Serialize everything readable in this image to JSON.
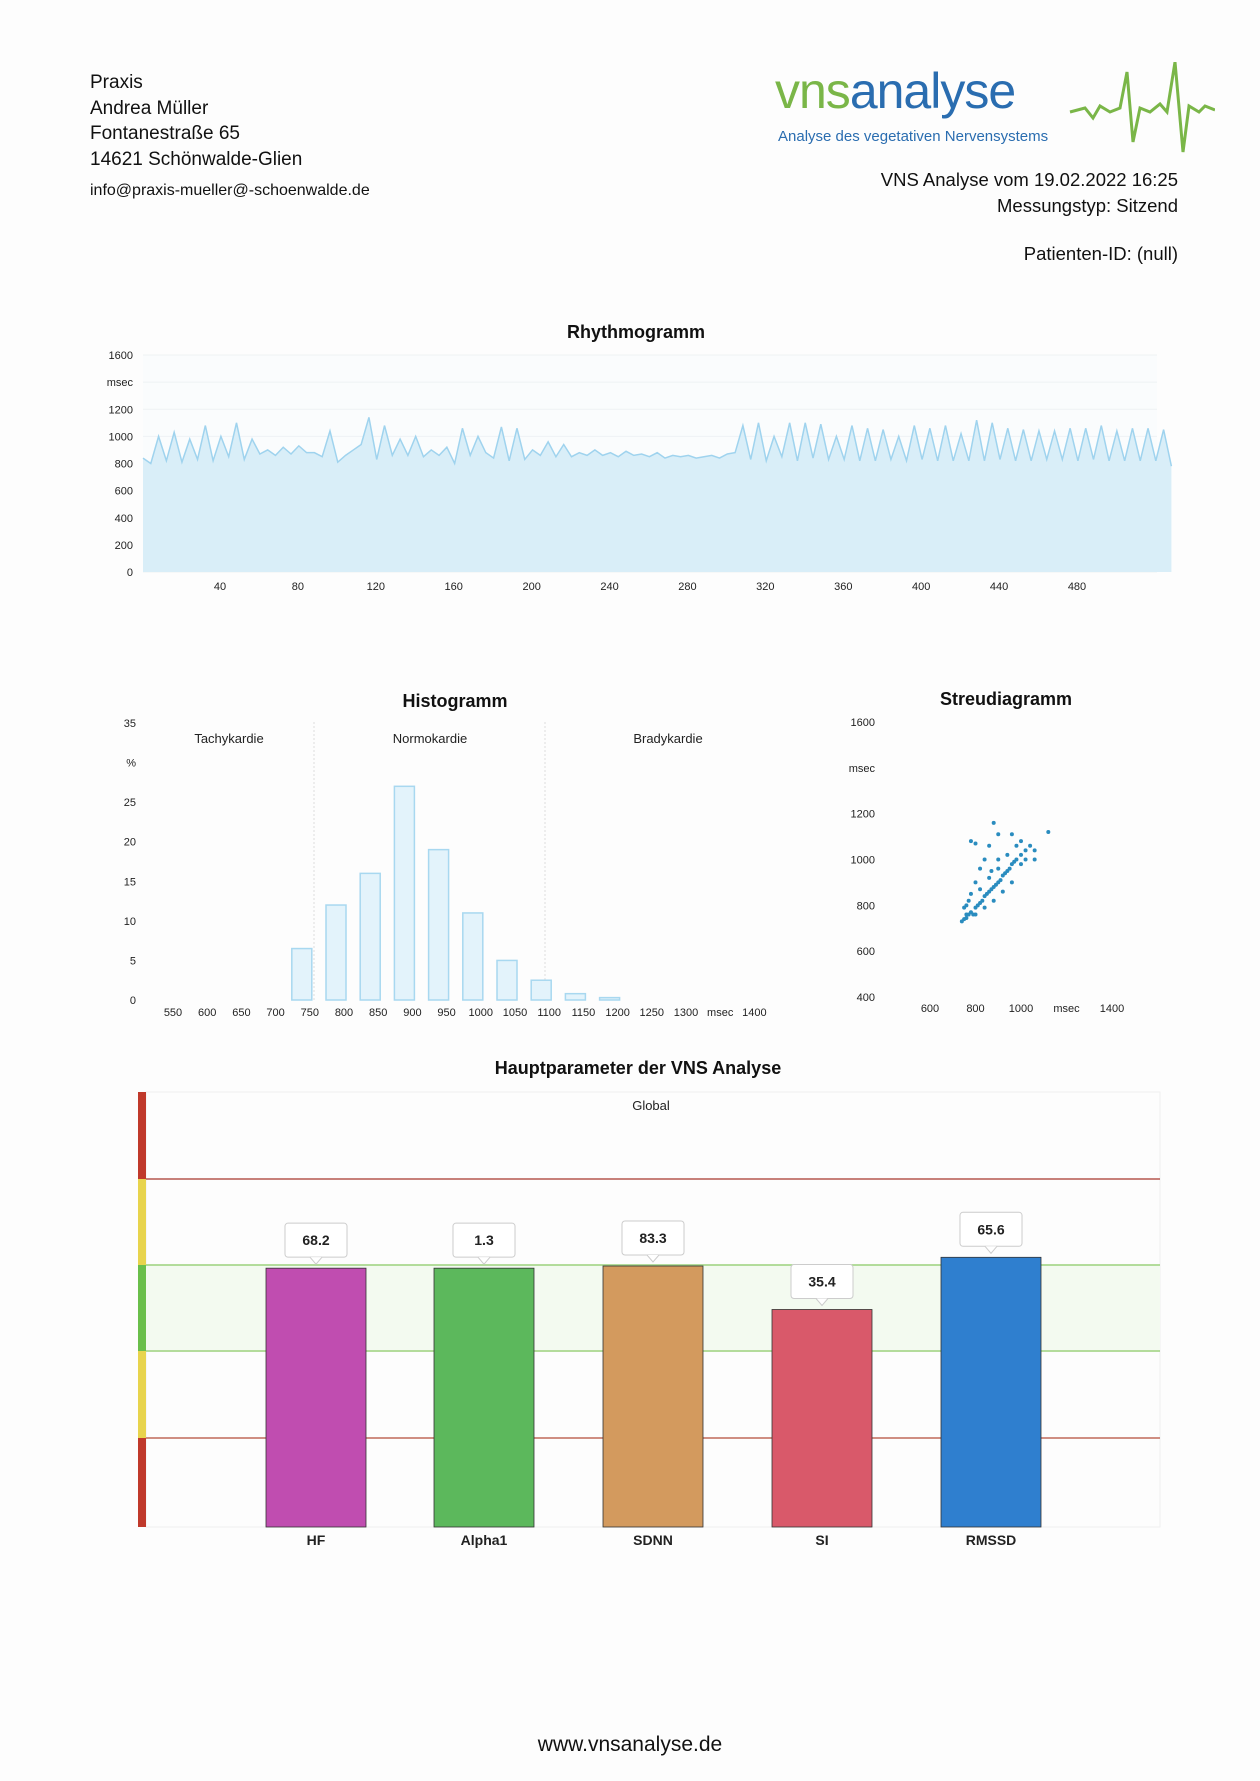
{
  "header": {
    "address": [
      "Praxis",
      "Andrea Müller",
      "Fontanestraße 65",
      "14621 Schönwalde-Glien"
    ],
    "email": "info@praxis-mueller@-schoenwalde.de",
    "logo": {
      "word_green": "vns",
      "word_blue": "analyse",
      "subtitle": "Analyse des vegetativen Nervensystems",
      "green": "#7ab648",
      "blue": "#2a6db0"
    },
    "analysis_line": "VNS Analyse vom 19.02.2022 16:25",
    "measurement_type": "Messungstyp: Sitzend",
    "patient_id": "Patienten-ID: (null)"
  },
  "footer": "www.vnsanalyse.de",
  "chart_data": [
    {
      "type": "area",
      "title": "Rhythmogramm",
      "ylabel": "msec",
      "ylim": [
        0,
        1600
      ],
      "yticks": [
        "0",
        "200",
        "400",
        "600",
        "800",
        "1000",
        "1200",
        "1600"
      ],
      "xticks": [
        "40",
        "80",
        "120",
        "160",
        "200",
        "240",
        "280",
        "320",
        "360",
        "400",
        "440",
        "480"
      ],
      "xlim": [
        0,
        520
      ],
      "x_step": 4,
      "values": [
        840,
        800,
        1000,
        820,
        1030,
        810,
        980,
        830,
        1080,
        820,
        1000,
        850,
        1100,
        830,
        980,
        870,
        900,
        860,
        920,
        870,
        930,
        880,
        880,
        850,
        1040,
        810,
        860,
        900,
        940,
        1140,
        830,
        1080,
        860,
        980,
        860,
        1000,
        850,
        900,
        860,
        920,
        800,
        1060,
        860,
        1000,
        880,
        840,
        1070,
        820,
        1060,
        830,
        900,
        860,
        960,
        850,
        940,
        850,
        880,
        860,
        900,
        860,
        880,
        850,
        890,
        860,
        870,
        850,
        880,
        840,
        860,
        850,
        860,
        840,
        850,
        860,
        840,
        870,
        880,
        1080,
        830,
        1100,
        820,
        1000,
        850,
        1100,
        820,
        1100,
        840,
        1090,
        830,
        1000,
        830,
        1080,
        820,
        1060,
        820,
        1050,
        830,
        1000,
        820,
        1080,
        830,
        1060,
        820,
        1080,
        820,
        1020,
        820,
        1120,
        820,
        1100,
        830,
        1060,
        820,
        1050,
        820,
        1040,
        830,
        1040,
        830,
        1060,
        820,
        1060,
        830,
        1080,
        820,
        1040,
        820,
        1060,
        820,
        1060,
        820,
        1050,
        780
      ]
    },
    {
      "type": "bar",
      "title": "Histogramm",
      "ylabel": "%",
      "ylim": [
        0,
        35
      ],
      "yticks": [
        "0",
        "5",
        "10",
        "15",
        "20",
        "25",
        "35"
      ],
      "xticks": [
        "550",
        "600",
        "650",
        "700",
        "750",
        "800",
        "850",
        "900",
        "950",
        "1000",
        "1050",
        "1100",
        "1150",
        "1200",
        "1250",
        "1300",
        "msec",
        "1400"
      ],
      "zones": [
        "Tachykardie",
        "Normokardie",
        "Bradykardie"
      ],
      "categories": [
        750,
        800,
        850,
        900,
        950,
        1000,
        1050,
        1100,
        1150,
        1200
      ],
      "values": [
        6.5,
        12,
        16,
        27,
        19,
        11,
        5,
        2.5,
        0.8,
        0.3
      ]
    },
    {
      "type": "scatter",
      "title": "Streudiagramm",
      "ylabel": "msec",
      "xlim": [
        500,
        1500
      ],
      "ylim": [
        400,
        1600
      ],
      "xticks": [
        "600",
        "800",
        "1000",
        "msec",
        "1400"
      ],
      "yticks": [
        "400",
        "600",
        "800",
        "1000",
        "1200",
        "1600"
      ],
      "points": [
        [
          740,
          730
        ],
        [
          750,
          740
        ],
        [
          760,
          745
        ],
        [
          770,
          760
        ],
        [
          780,
          770
        ],
        [
          790,
          760
        ],
        [
          800,
          790
        ],
        [
          810,
          800
        ],
        [
          820,
          810
        ],
        [
          830,
          820
        ],
        [
          840,
          840
        ],
        [
          850,
          850
        ],
        [
          860,
          860
        ],
        [
          870,
          870
        ],
        [
          880,
          880
        ],
        [
          890,
          890
        ],
        [
          900,
          900
        ],
        [
          910,
          910
        ],
        [
          920,
          930
        ],
        [
          930,
          940
        ],
        [
          940,
          950
        ],
        [
          950,
          960
        ],
        [
          960,
          980
        ],
        [
          970,
          990
        ],
        [
          980,
          1000
        ],
        [
          1000,
          1020
        ],
        [
          1020,
          1040
        ],
        [
          1040,
          1060
        ],
        [
          760,
          800
        ],
        [
          780,
          850
        ],
        [
          800,
          900
        ],
        [
          820,
          960
        ],
        [
          840,
          1000
        ],
        [
          860,
          1060
        ],
        [
          780,
          1080
        ],
        [
          800,
          1070
        ],
        [
          900,
          1110
        ],
        [
          960,
          1110
        ],
        [
          1120,
          1120
        ],
        [
          880,
          1160
        ],
        [
          1060,
          1040
        ],
        [
          1000,
          980
        ],
        [
          960,
          900
        ],
        [
          920,
          860
        ],
        [
          880,
          820
        ],
        [
          840,
          790
        ],
        [
          800,
          760
        ],
        [
          760,
          760
        ],
        [
          750,
          790
        ],
        [
          770,
          820
        ],
        [
          820,
          870
        ],
        [
          860,
          920
        ],
        [
          900,
          960
        ],
        [
          940,
          1020
        ],
        [
          980,
          1060
        ],
        [
          1020,
          1000
        ],
        [
          1060,
          1000
        ],
        [
          1000,
          1080
        ],
        [
          900,
          1000
        ],
        [
          870,
          950
        ]
      ]
    },
    {
      "type": "bar",
      "title": "Hauptparameter der VNS Analyse",
      "subtitle": "Global",
      "categories": [
        "HF",
        "Alpha1",
        "SDNN",
        "SI",
        "RMSSD"
      ],
      "values": [
        "68.2",
        "1.3",
        "83.3",
        "35.4",
        "65.6"
      ],
      "levels": [
        0.595,
        0.595,
        0.6,
        0.5,
        0.62
      ],
      "colors": [
        "#c04db0",
        "#5cb85c",
        "#d39a5e",
        "#d9596a",
        "#2f7fcf"
      ]
    }
  ]
}
